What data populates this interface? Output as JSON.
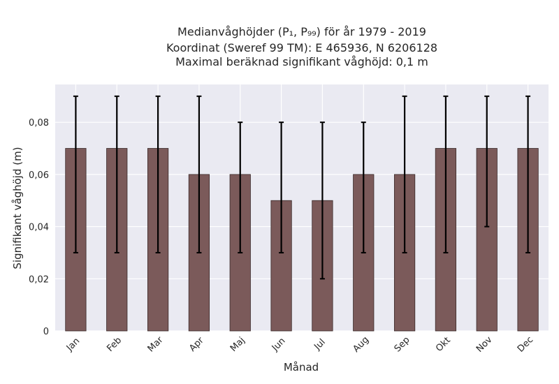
{
  "chart_data": {
    "type": "bar",
    "title_lines": [
      "Medianvåghöjder (P₁, P₉₉) för år 1979 - 2019",
      "Koordinat (Sweref 99 TM): E 465936, N 6206128",
      "Maximal beräknad signifikant våghöjd: 0,1 m"
    ],
    "xlabel": "Månad",
    "ylabel": "Signifikant våghöjd (m)",
    "categories": [
      "Jan",
      "Feb",
      "Mar",
      "Apr",
      "Maj",
      "Jun",
      "Jul",
      "Aug",
      "Sep",
      "Okt",
      "Nov",
      "Dec"
    ],
    "values": [
      0.07,
      0.07,
      0.07,
      0.06,
      0.06,
      0.05,
      0.05,
      0.06,
      0.06,
      0.07,
      0.07,
      0.07
    ],
    "p1": [
      0.03,
      0.03,
      0.03,
      0.03,
      0.03,
      0.03,
      0.02,
      0.03,
      0.03,
      0.03,
      0.04,
      0.03
    ],
    "p99": [
      0.09,
      0.09,
      0.09,
      0.09,
      0.08,
      0.08,
      0.08,
      0.08,
      0.09,
      0.09,
      0.09,
      0.09
    ],
    "ylim": [
      0,
      0.0945
    ],
    "yticks": [
      0,
      0.02,
      0.04,
      0.06,
      0.08
    ],
    "ytick_labels": [
      "0",
      "0,02",
      "0,04",
      "0,06",
      "0,08"
    ],
    "grid": true,
    "colors": {
      "bar": "#7b5a5a",
      "bar_edge": "#3a2a2a",
      "error": "#000000",
      "plot_bg": "#eaeaf2",
      "grid": "#ffffff"
    }
  }
}
